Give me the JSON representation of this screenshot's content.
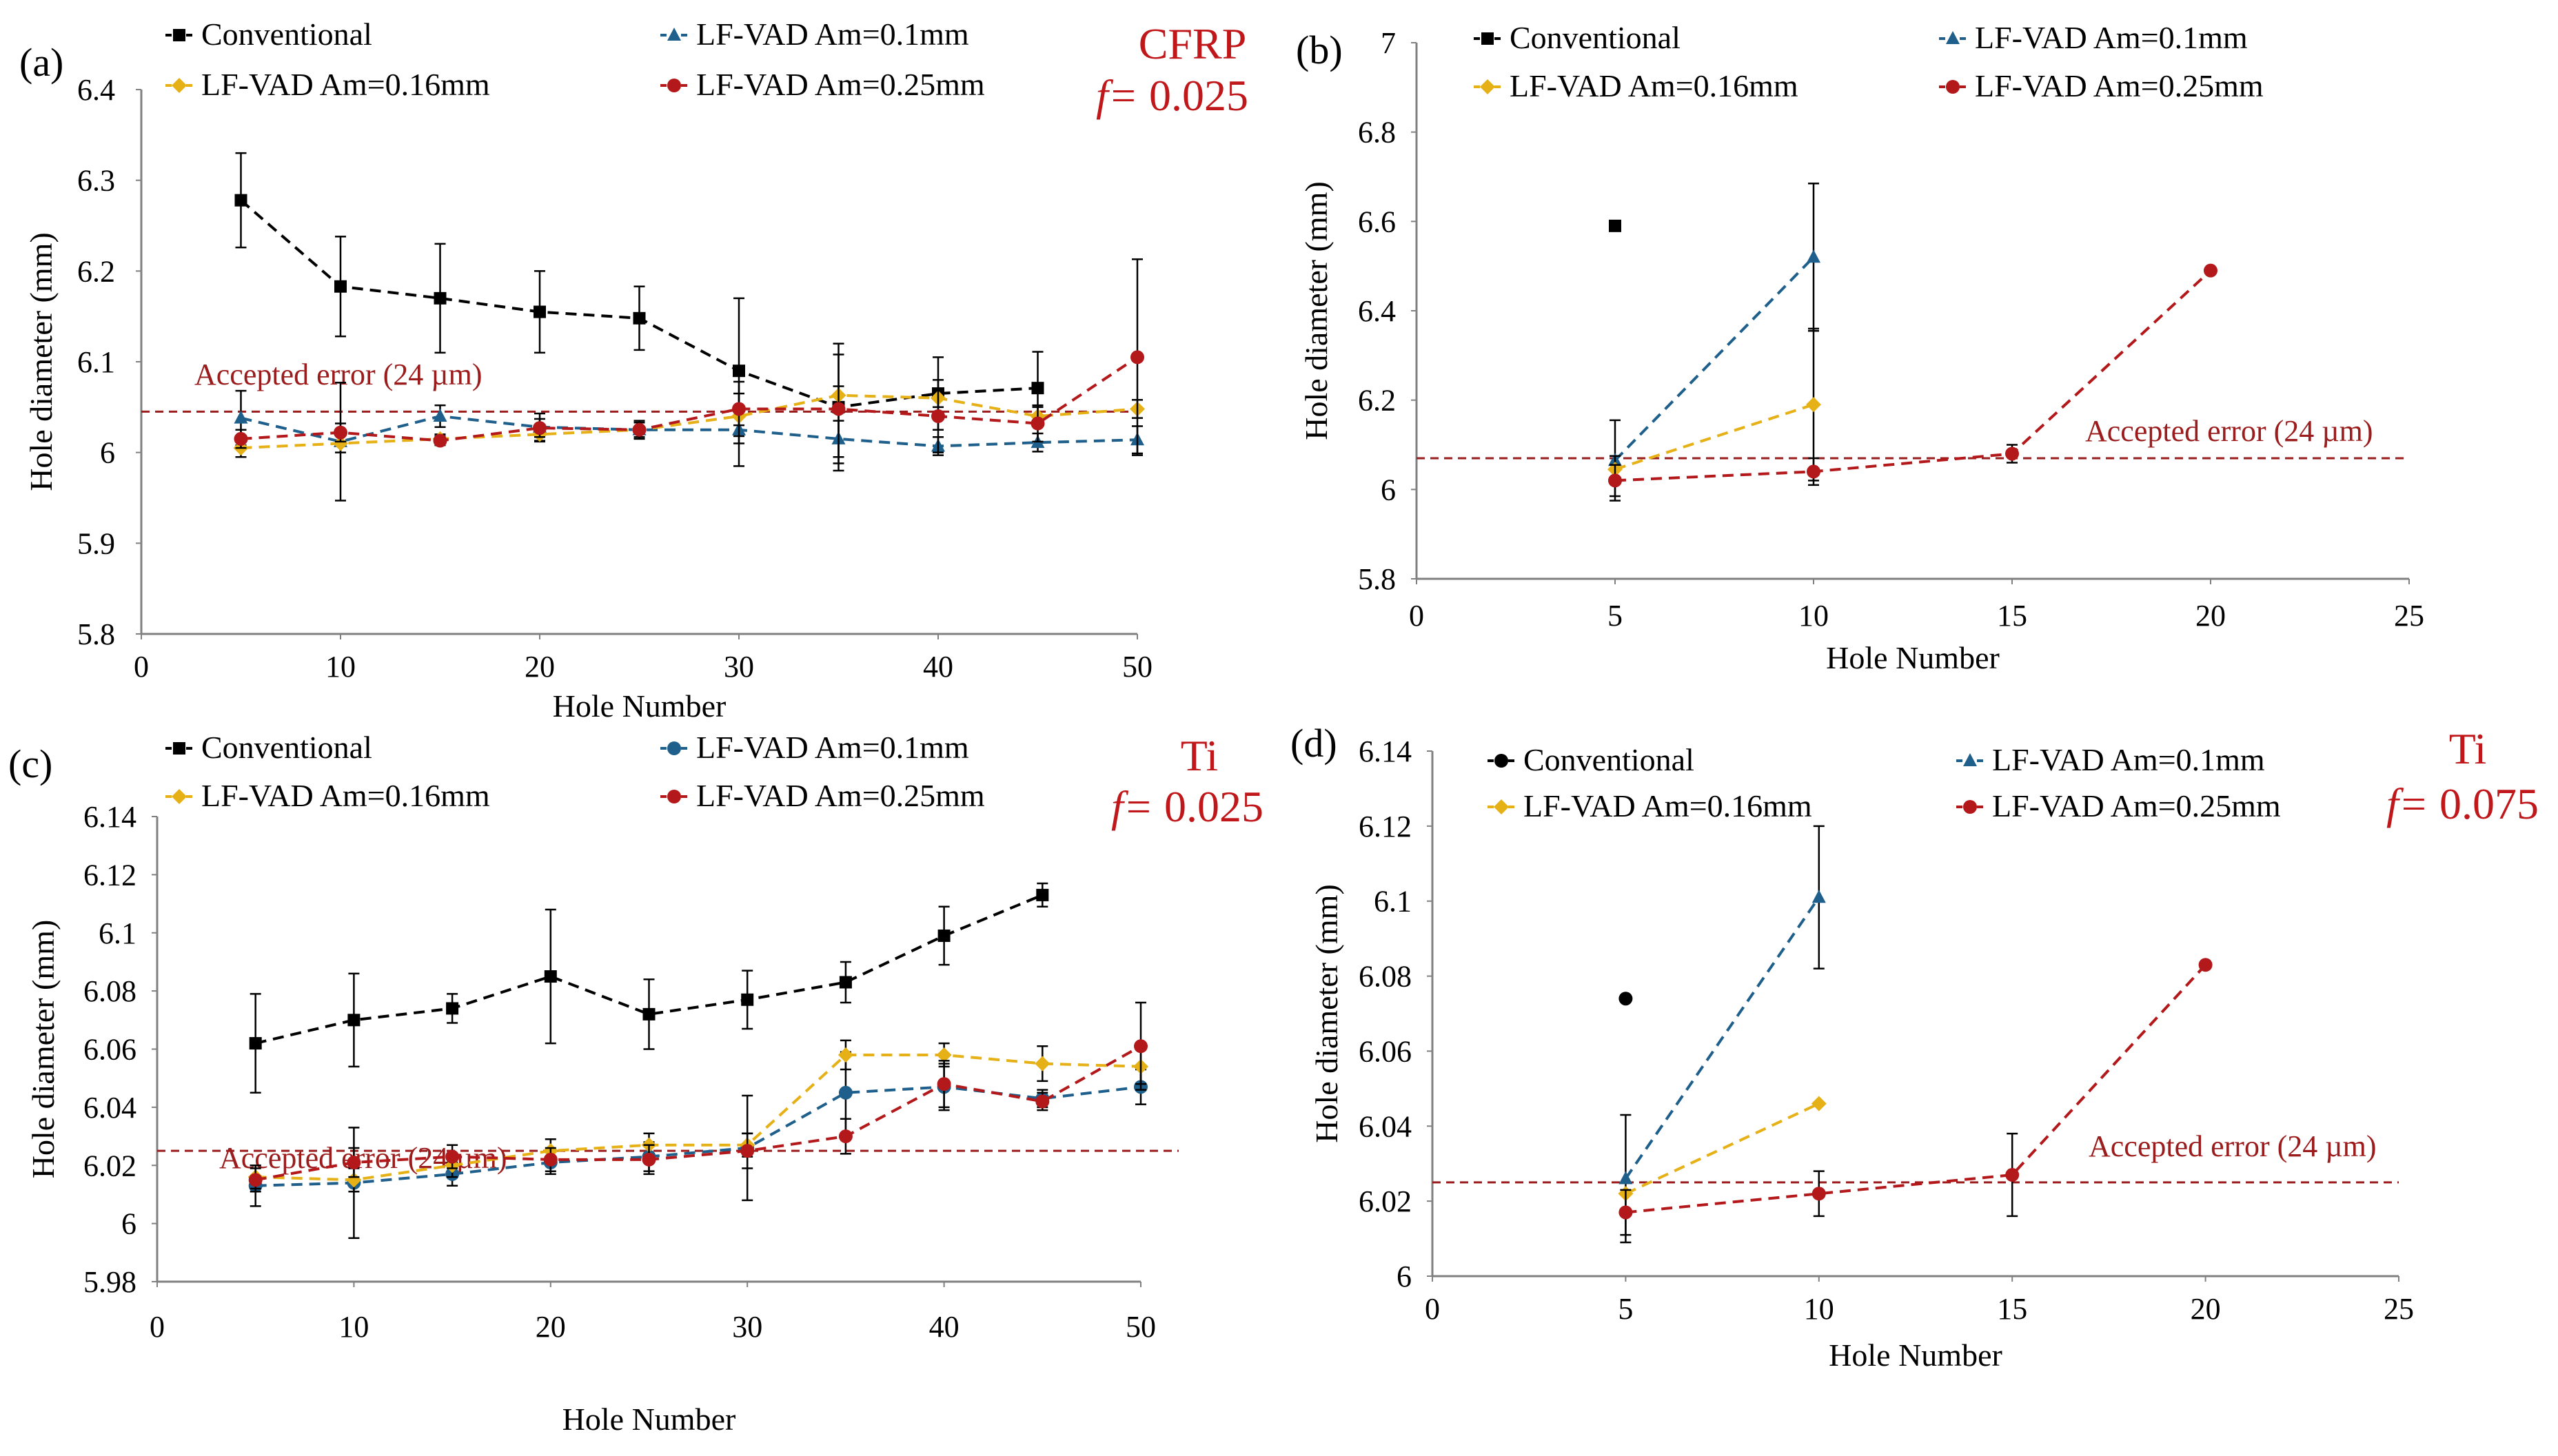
{
  "chart_data": [
    {
      "panel": "(a)",
      "type": "line",
      "material": "CFRP",
      "feed": "f= 0.025",
      "feed_value": 0.025,
      "xlabel": "Hole Number",
      "ylabel": "Hole diameter (mm)",
      "xlim": [
        0,
        50
      ],
      "ylim": [
        5.8,
        6.4
      ],
      "xticks": [
        "0",
        "10",
        "20",
        "30",
        "40",
        "50"
      ],
      "yticks": [
        "5.8",
        "5.9",
        "6",
        "6.1",
        "6.2",
        "6.3",
        "6.4"
      ],
      "reference": {
        "label": "Accepted error (24 µm)",
        "y": 6.045
      },
      "series": [
        {
          "name": "Conventional",
          "color": "#000000",
          "marker": "square",
          "x": [
            5,
            10,
            15,
            20,
            25,
            30,
            35,
            40,
            45
          ],
          "y": [
            6.278,
            6.183,
            6.17,
            6.155,
            6.148,
            6.09,
            6.05,
            6.065,
            6.071
          ],
          "err": [
            0.052,
            0.055,
            0.06,
            0.045,
            0.035,
            0.08,
            0.07,
            0.04,
            0.04
          ]
        },
        {
          "name": "LF-VAD Am=0.1mm",
          "color": "#1f5f8b",
          "marker": "triangle",
          "x": [
            5,
            10,
            15,
            20,
            25,
            30,
            35,
            40,
            45,
            50
          ],
          "y": [
            6.038,
            6.012,
            6.04,
            6.028,
            6.025,
            6.025,
            6.015,
            6.007,
            6.011,
            6.014
          ],
          "err": [
            0.03,
            0.065,
            0.012,
            0.015,
            0.01,
            0.04,
            0.02,
            0.01,
            0.01,
            0.015
          ]
        },
        {
          "name": "LF-VAD Am=0.16mm",
          "color": "#e6b117",
          "marker": "diamond",
          "x": [
            5,
            10,
            15,
            20,
            25,
            30,
            35,
            40,
            45,
            50
          ],
          "y": [
            6.005,
            6.01,
            6.015,
            6.02,
            6.025,
            6.04,
            6.063,
            6.06,
            6.04,
            6.048
          ],
          "err": [
            0.01,
            0.01,
            0.005,
            0.008,
            0.008,
            0.01,
            0.01,
            0.01,
            0.01,
            0.01
          ]
        },
        {
          "name": "LF-VAD Am=0.25mm",
          "color": "#b3181b",
          "marker": "circle",
          "x": [
            5,
            10,
            15,
            20,
            25,
            30,
            35,
            40,
            45,
            50
          ],
          "y": [
            6.015,
            6.022,
            6.013,
            6.027,
            6.025,
            6.048,
            6.048,
            6.04,
            6.032,
            6.105
          ],
          "err": [
            0.01,
            0.01,
            0.005,
            0.01,
            0.008,
            0.03,
            0.06,
            0.04,
            0.02,
            0.108
          ]
        }
      ]
    },
    {
      "panel": "(b)",
      "type": "line",
      "material": "",
      "feed": "",
      "xlabel": "Hole Number",
      "ylabel": "Hole diameter (mm)",
      "xlim": [
        0,
        25
      ],
      "ylim": [
        5.8,
        7.0
      ],
      "xticks": [
        "0",
        "5",
        "10",
        "15",
        "20",
        "25"
      ],
      "yticks": [
        "5.8",
        "6",
        "6.2",
        "6.4",
        "6.6",
        "6.8",
        "7"
      ],
      "reference": {
        "label": "Accepted error (24 µm)",
        "y": 6.07
      },
      "series": [
        {
          "name": "Conventional",
          "color": "#000000",
          "marker": "square",
          "x": [
            5
          ],
          "y": [
            6.59
          ],
          "err": [
            0
          ]
        },
        {
          "name": "LF-VAD Am=0.1mm",
          "color": "#1f5f8b",
          "marker": "triangle",
          "x": [
            5,
            10
          ],
          "y": [
            6.065,
            6.52
          ],
          "err": [
            0.09,
            0.165
          ]
        },
        {
          "name": "LF-VAD Am=0.16mm",
          "color": "#e6b117",
          "marker": "diamond",
          "x": [
            5,
            10
          ],
          "y": [
            6.045,
            6.19
          ],
          "err": [
            0.03,
            0.17
          ]
        },
        {
          "name": "LF-VAD Am=0.25mm",
          "color": "#b3181b",
          "marker": "circle",
          "x": [
            5,
            10,
            15,
            20
          ],
          "y": [
            6.02,
            6.04,
            6.08,
            6.49
          ],
          "err": [
            0.035,
            0.03,
            0.02,
            0
          ]
        }
      ]
    },
    {
      "panel": "(c)",
      "type": "line",
      "material": "Ti",
      "feed": "f= 0.025",
      "feed_value": 0.025,
      "xlabel": "Hole Number",
      "ylabel": "Hole diameter (mm)",
      "xlim": [
        0,
        50
      ],
      "ylim": [
        5.98,
        6.14
      ],
      "xticks": [
        "0",
        "10",
        "20",
        "30",
        "40",
        "50"
      ],
      "yticks": [
        "5.98",
        "6",
        "6.02",
        "6.04",
        "6.06",
        "6.08",
        "6.1",
        "6.12",
        "6.14"
      ],
      "reference": {
        "label": "Accepted error (24 µm)",
        "y": 6.025
      },
      "series": [
        {
          "name": "Conventional",
          "color": "#000000",
          "marker": "square",
          "x": [
            5,
            10,
            15,
            20,
            25,
            30,
            35,
            40,
            45
          ],
          "y": [
            6.062,
            6.07,
            6.074,
            6.085,
            6.072,
            6.077,
            6.083,
            6.099,
            6.113
          ],
          "err": [
            0.017,
            0.016,
            0.005,
            0.023,
            0.012,
            0.01,
            0.007,
            0.01,
            0.004
          ]
        },
        {
          "name": "LF-VAD Am=0.1mm",
          "color": "#1f5f8b",
          "marker": "circle",
          "x": [
            5,
            10,
            15,
            20,
            25,
            30,
            35,
            40,
            45,
            50
          ],
          "y": [
            6.013,
            6.014,
            6.017,
            6.021,
            6.023,
            6.026,
            6.045,
            6.047,
            6.043,
            6.047
          ],
          "err": [
            0.007,
            0.019,
            0.004,
            0.004,
            0.005,
            0.018,
            0.014,
            0.008,
            0.003,
            0.006
          ]
        },
        {
          "name": "LF-VAD Am=0.16mm",
          "color": "#e6b117",
          "marker": "diamond",
          "x": [
            5,
            10,
            15,
            20,
            25,
            30,
            35,
            40,
            45,
            50
          ],
          "y": [
            6.016,
            6.015,
            6.02,
            6.025,
            6.027,
            6.027,
            6.058,
            6.058,
            6.055,
            6.054
          ],
          "err": [
            0.004,
            0.004,
            0.004,
            0.004,
            0.004,
            0.004,
            0.005,
            0.004,
            0.006,
            0.006
          ]
        },
        {
          "name": "LF-VAD Am=0.25mm",
          "color": "#b3181b",
          "marker": "circle",
          "x": [
            5,
            10,
            15,
            20,
            25,
            30,
            35,
            40,
            45,
            50
          ],
          "y": [
            6.015,
            6.021,
            6.023,
            6.022,
            6.022,
            6.025,
            6.03,
            6.048,
            6.042,
            6.061
          ],
          "err": [
            0.004,
            0.005,
            0.004,
            0.004,
            0.005,
            0.006,
            0.006,
            0.008,
            0.003,
            0.015
          ]
        }
      ]
    },
    {
      "panel": "(d)",
      "type": "line",
      "material": "Ti",
      "feed": "f= 0.075",
      "feed_value": 0.075,
      "xlabel": "Hole Number",
      "ylabel": "Hole diameter (mm)",
      "xlim": [
        0,
        25
      ],
      "ylim": [
        6.0,
        6.14
      ],
      "xticks": [
        "0",
        "5",
        "10",
        "15",
        "20",
        "25"
      ],
      "yticks": [
        "6",
        "6.02",
        "6.04",
        "6.06",
        "6.08",
        "6.1",
        "6.12",
        "6.14"
      ],
      "reference": {
        "label": "Accepted error (24 µm)",
        "y": 6.025
      },
      "series": [
        {
          "name": "Conventional",
          "color": "#000000",
          "marker": "circle",
          "x": [
            5
          ],
          "y": [
            6.074
          ],
          "err": [
            0
          ]
        },
        {
          "name": "LF-VAD Am=0.1mm",
          "color": "#1f5f8b",
          "marker": "triangle",
          "x": [
            5,
            10
          ],
          "y": [
            6.026,
            6.101
          ],
          "err": [
            0.017,
            0.019
          ]
        },
        {
          "name": "LF-VAD Am=0.16mm",
          "color": "#e6b117",
          "marker": "diamond",
          "x": [
            5,
            10
          ],
          "y": [
            6.022,
            6.046
          ],
          "err": [
            0,
            0
          ]
        },
        {
          "name": "LF-VAD Am=0.25mm",
          "color": "#b3181b",
          "marker": "circle",
          "x": [
            5,
            10,
            15,
            20
          ],
          "y": [
            6.017,
            6.022,
            6.027,
            6.083
          ],
          "err": [
            0.006,
            0.006,
            0.011,
            0
          ]
        }
      ]
    }
  ]
}
